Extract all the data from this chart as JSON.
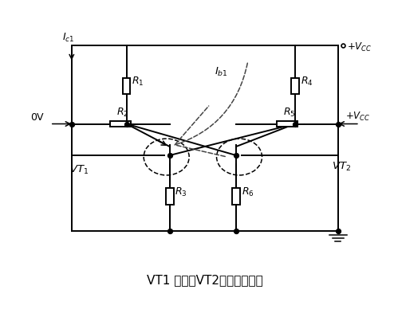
{
  "title": "VT1 导通、VT2截止时的情况",
  "bg": "#ffffff",
  "lc": "#000000",
  "fig_width": 4.94,
  "fig_height": 3.98,
  "dpi": 100,
  "LR": 1.8,
  "RR": 8.6,
  "xL": 3.2,
  "xBL": 4.3,
  "xBR": 6.0,
  "xR": 7.5,
  "yT": 8.6,
  "yR14": 7.3,
  "yCR": 6.1,
  "yTR": 5.1,
  "yR36": 3.8,
  "yB": 2.7
}
